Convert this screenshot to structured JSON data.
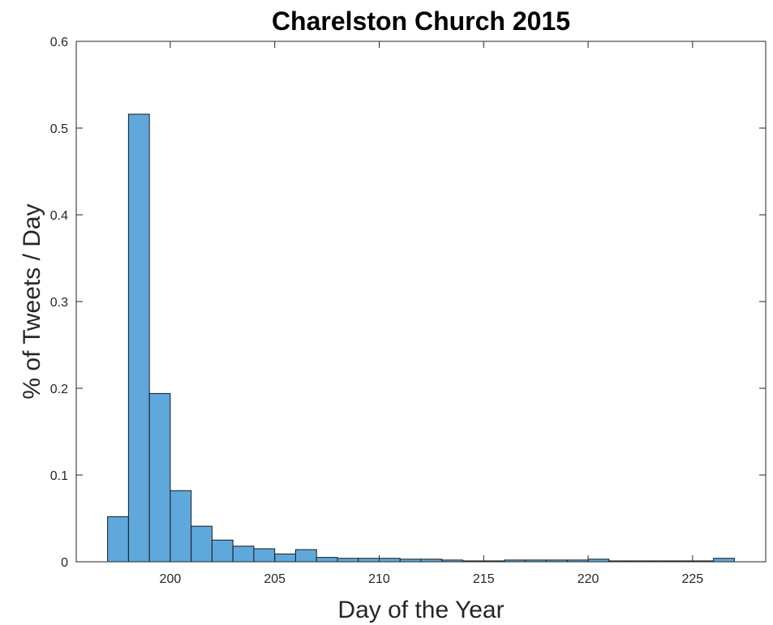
{
  "chart_data": {
    "type": "bar",
    "title": "Charelston Church 2015",
    "xlabel": "Day of the Year",
    "ylabel": "% of Tweets / Day",
    "xlim": [
      195.5,
      228.5
    ],
    "ylim": [
      0,
      0.6
    ],
    "bin_width": 1,
    "bar_color": "#5fa8dc",
    "edge_color": "#1a1a1a",
    "grid": false,
    "xticks": [
      200,
      205,
      210,
      215,
      220,
      225
    ],
    "xtick_labels": [
      "200",
      "205",
      "210",
      "215",
      "220",
      "225"
    ],
    "yticks": [
      0,
      0.1,
      0.2,
      0.3,
      0.4,
      0.5,
      0.6
    ],
    "ytick_labels": [
      "0",
      "0.1",
      "0.2",
      "0.3",
      "0.4",
      "0.5",
      "0.6"
    ],
    "bin_starts": [
      197,
      198,
      199,
      200,
      201,
      202,
      203,
      204,
      205,
      206,
      207,
      208,
      209,
      210,
      211,
      212,
      213,
      214,
      215,
      216,
      217,
      218,
      219,
      220,
      221,
      222,
      223,
      224,
      225,
      226
    ],
    "values": [
      0.052,
      0.516,
      0.194,
      0.082,
      0.041,
      0.025,
      0.018,
      0.015,
      0.009,
      0.014,
      0.005,
      0.004,
      0.004,
      0.004,
      0.003,
      0.003,
      0.002,
      0.001,
      0.001,
      0.002,
      0.002,
      0.002,
      0.002,
      0.003,
      0.001,
      0.001,
      0.001,
      0.001,
      0.001,
      0.004
    ]
  }
}
